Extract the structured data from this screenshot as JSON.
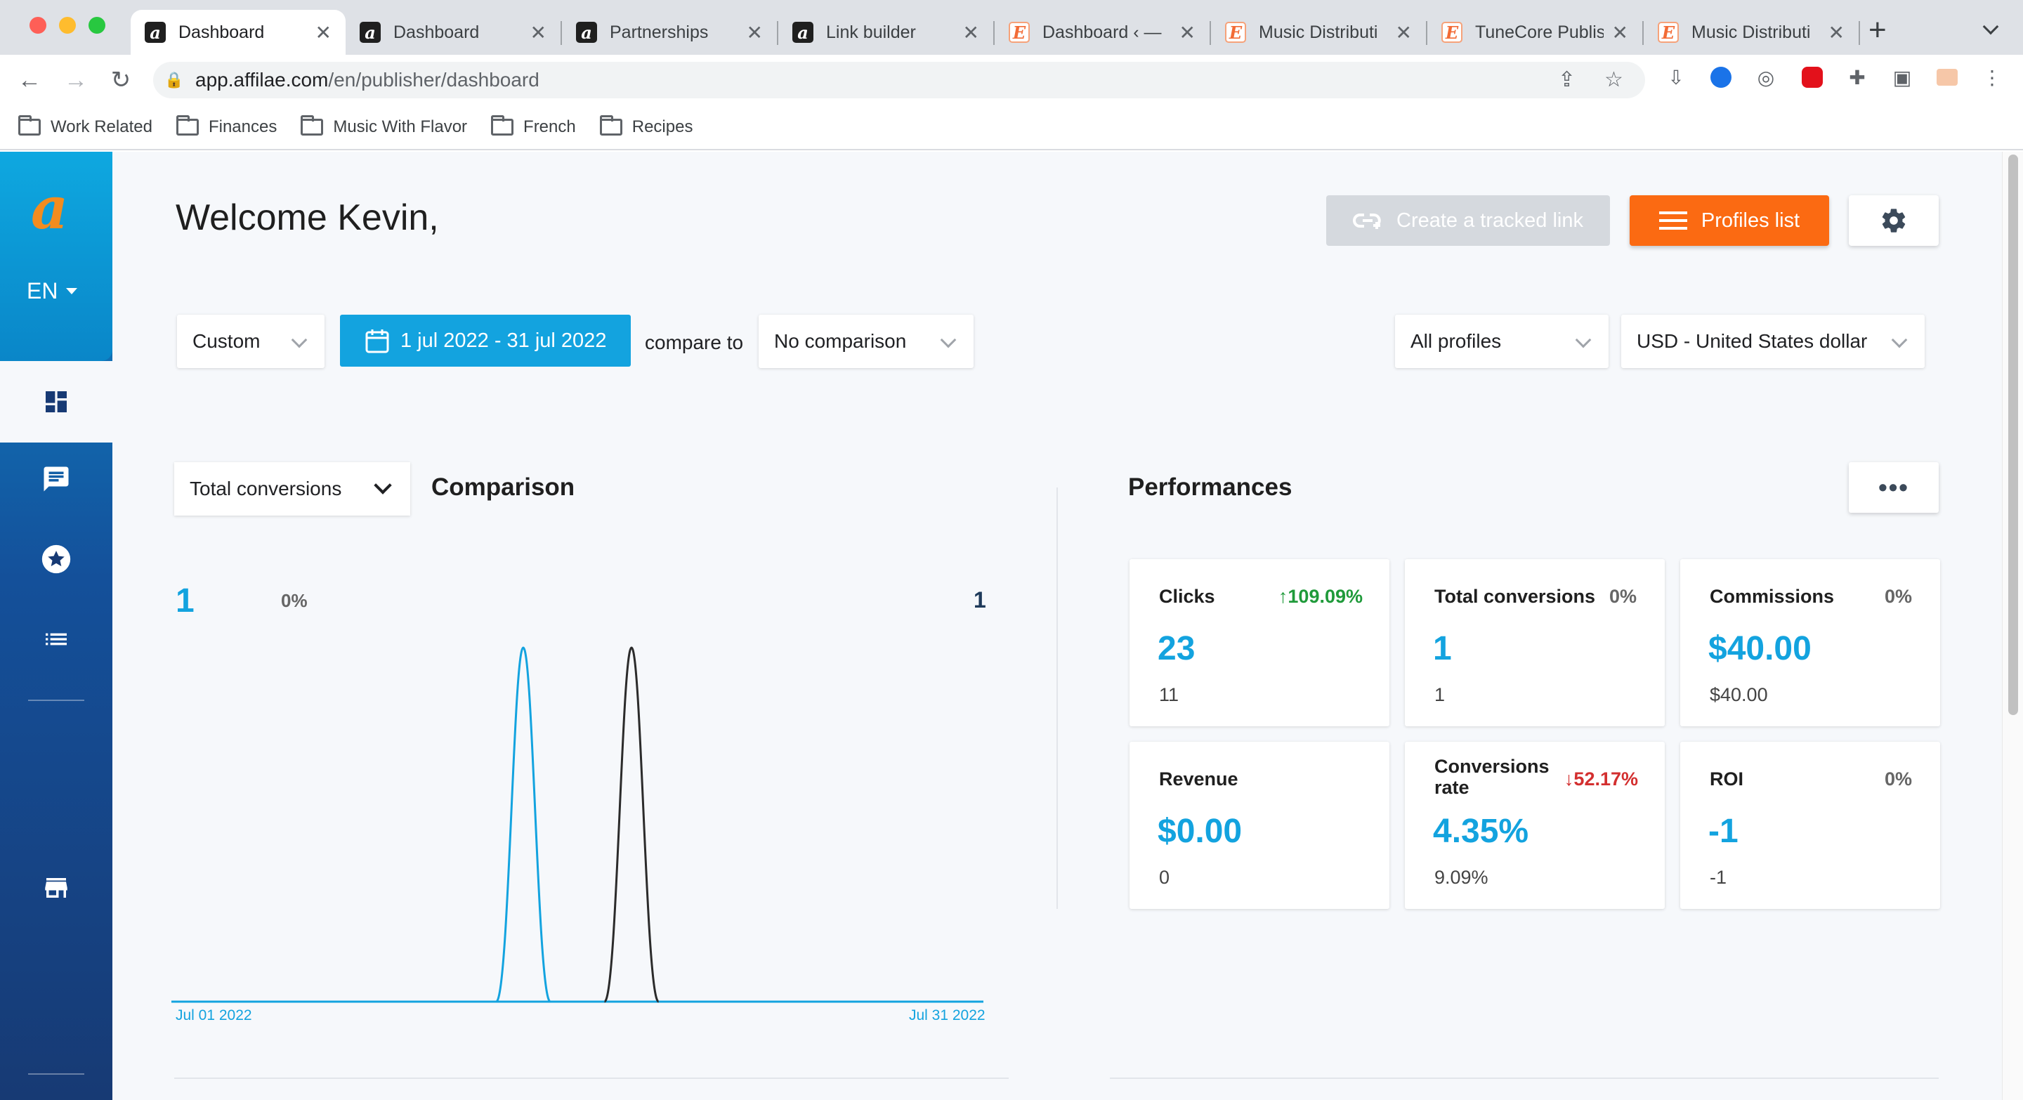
{
  "browser": {
    "tabs": [
      {
        "label": "Dashboard",
        "favicon": "affilae",
        "active": true
      },
      {
        "label": "Dashboard",
        "favicon": "affilae"
      },
      {
        "label": "Partnerships",
        "favicon": "affilae"
      },
      {
        "label": "Link builder",
        "favicon": "affilae"
      },
      {
        "label": "Dashboard ‹ —",
        "favicon": "e"
      },
      {
        "label": "Music Distributi",
        "favicon": "e"
      },
      {
        "label": "TuneCore Publis",
        "favicon": "e"
      },
      {
        "label": "Music Distributi",
        "favicon": "e"
      }
    ],
    "new_tab": "+",
    "url_host": "app.affilae.com",
    "url_path": "/en/publisher/dashboard",
    "bookmarks": [
      "Work Related",
      "Finances",
      "Music With Flavor",
      "French",
      "Recipes"
    ]
  },
  "sidebar": {
    "logo": "a",
    "language": "EN",
    "icons": [
      "dashboard-icon",
      "messages-icon",
      "star-icon",
      "list-icon",
      "store-icon"
    ]
  },
  "header": {
    "welcome": "Welcome Kevin,",
    "create_link": "Create a tracked link",
    "profiles_list": "Profiles list"
  },
  "filters": {
    "period": "Custom",
    "date_range": "1 jul 2022 - 31 jul 2022",
    "compare_to": "compare to",
    "comparison": "No comparison",
    "profiles": "All profiles",
    "currency": "USD - United States dollar"
  },
  "comparison": {
    "metric": "Total conversions",
    "title": "Comparison",
    "current_value": "1",
    "change": "0%",
    "previous_value": "1"
  },
  "chart_data": {
    "type": "line",
    "x": [
      "Jul 01 2022",
      "Jul 31 2022"
    ],
    "x_start_label": "Jul 01 2022",
    "x_end_label": "Jul 31 2022",
    "series": [
      {
        "color": "#13a3df",
        "peak_day": 14,
        "values_nonzero": {
          "14": 1
        }
      },
      {
        "color": "#2b2b2b",
        "peak_day": 18,
        "values_nonzero": {
          "18": 1
        }
      }
    ],
    "ylim": [
      0,
      1
    ],
    "grid": false
  },
  "performances": {
    "title": "Performances",
    "more": "•••",
    "cards": [
      {
        "title": "Clicks",
        "delta": "109.09%",
        "delta_dir": "up",
        "value": "23",
        "previous": "11"
      },
      {
        "title": "Total conversions",
        "delta": "0%",
        "delta_dir": "none",
        "value": "1",
        "previous": "1"
      },
      {
        "title": "Commissions",
        "delta": "0%",
        "delta_dir": "none",
        "value": "$40.00",
        "previous": "$40.00"
      },
      {
        "title": "Revenue",
        "delta": "",
        "delta_dir": "none",
        "value": "$0.00",
        "previous": "0"
      },
      {
        "title": "Conversions rate",
        "delta": "52.17%",
        "delta_dir": "down",
        "value": "4.35%",
        "previous": "9.09%"
      },
      {
        "title": "ROI",
        "delta": "0%",
        "delta_dir": "none",
        "value": "-1",
        "previous": "-1"
      }
    ]
  },
  "colors": {
    "accent": "#13a3df",
    "orange": "#fb6a12",
    "up": "#1f9a3a",
    "down": "#d32f2f"
  }
}
